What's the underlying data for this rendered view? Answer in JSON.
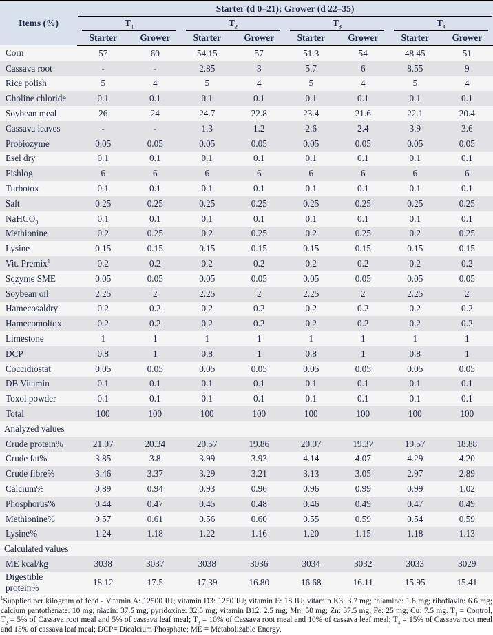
{
  "colors": {
    "header_bg": "#d9e2ec",
    "row_gray": "#e2e2e4",
    "row_white": "#f5f5f6",
    "text": "#1e2745"
  },
  "header": {
    "items_label": "Items (%)",
    "span_label": "Starter (d 0–21); Grower (d 22–35)",
    "groups": [
      {
        "base": "T",
        "sub": "1"
      },
      {
        "base": "T",
        "sub": "2"
      },
      {
        "base": "T",
        "sub": "3"
      },
      {
        "base": "T",
        "sub": "4"
      }
    ],
    "subcols": [
      "Starter",
      "Grower"
    ]
  },
  "table": {
    "rows": [
      {
        "label": "Corn",
        "shade": "w",
        "values": [
          "57",
          "60",
          "54.15",
          "57",
          "51.3",
          "54",
          "48.45",
          "51"
        ]
      },
      {
        "label": "Cassava root",
        "shade": "g",
        "values": [
          "-",
          "-",
          "2.85",
          "3",
          "5.7",
          "6",
          "8.55",
          "9"
        ]
      },
      {
        "label": "Rice polish",
        "shade": "w",
        "values": [
          "5",
          "4",
          "5",
          "4",
          "5",
          "4",
          "5",
          "4"
        ]
      },
      {
        "label": "Choline chloride",
        "shade": "g",
        "values": [
          "0.1",
          "0.1",
          "0.1",
          "0.1",
          "0.1",
          "0.1",
          "0.1",
          "0.1"
        ]
      },
      {
        "label": "Soybean meal",
        "shade": "w",
        "values": [
          "26",
          "24",
          "24.7",
          "22.8",
          "23.4",
          "21.6",
          "22.1",
          "20.4"
        ]
      },
      {
        "label": "Cassava leaves",
        "shade": "g",
        "values": [
          "-",
          "-",
          "1.3",
          "1.2",
          "2.6",
          "2.4",
          "3.9",
          "3.6"
        ]
      },
      {
        "label": "Probiozyme",
        "shade": "g",
        "values": [
          "0.05",
          "0.05",
          "0.05",
          "0.05",
          "0.05",
          "0.05",
          "0.05",
          "0.05"
        ]
      },
      {
        "label": "Esel dry",
        "shade": "w",
        "values": [
          "0.1",
          "0.1",
          "0.1",
          "0.1",
          "0.1",
          "0.1",
          "0.1",
          "0.1"
        ]
      },
      {
        "label": "Fishlog",
        "shade": "g",
        "values": [
          "6",
          "6",
          "6",
          "6",
          "6",
          "6",
          "6",
          "6"
        ]
      },
      {
        "label": "Turbotox",
        "shade": "w",
        "values": [
          "0.1",
          "0.1",
          "0.1",
          "0.1",
          "0.1",
          "0.1",
          "0.1",
          "0.1"
        ]
      },
      {
        "label": "Salt",
        "shade": "g",
        "values": [
          "0.25",
          "0.25",
          "0.25",
          "0.25",
          "0.25",
          "0.25",
          "0.25",
          "0.25"
        ]
      },
      {
        "label": "NaHCO_3",
        "shade": "w",
        "values": [
          "0.1",
          "0.1",
          "0.1",
          "0.1",
          "0.1",
          "0.1",
          "0.1",
          "0.1"
        ]
      },
      {
        "label": "Methionine",
        "shade": "g",
        "values": [
          "0.2",
          "0.25",
          "0.2",
          "0.25",
          "0.2",
          "0.25",
          "0.2",
          "0.25"
        ]
      },
      {
        "label": "Lysine",
        "shade": "w",
        "values": [
          "0.15",
          "0.15",
          "0.15",
          "0.15",
          "0.15",
          "0.15",
          "0.15",
          "0.15"
        ]
      },
      {
        "label": "Vit. Premix^1",
        "shade": "g",
        "values": [
          "0.2",
          "0.2",
          "0.2",
          "0.2",
          "0.2",
          "0.2",
          "0.2",
          "0.2"
        ]
      },
      {
        "label": "Sqzyme SME",
        "shade": "w",
        "values": [
          "0.05",
          "0.05",
          "0.05",
          "0.05",
          "0.05",
          "0.05",
          "0.05",
          "0.05"
        ]
      },
      {
        "label": "Soybean oil",
        "shade": "g",
        "values": [
          "2.25",
          "2",
          "2.25",
          "2",
          "2.25",
          "2",
          "2.25",
          "2"
        ]
      },
      {
        "label": "Hamecosaldry",
        "shade": "w",
        "values": [
          "0.2",
          "0.2",
          "0.2",
          "0.2",
          "0.2",
          "0.2",
          "0.2",
          "0.2"
        ]
      },
      {
        "label": "Hamecomoltox",
        "shade": "g",
        "values": [
          "0.2",
          "0.2",
          "0.2",
          "0.2",
          "0.2",
          "0.2",
          "0.2",
          "0.2"
        ]
      },
      {
        "label": "Limestone",
        "shade": "w",
        "values": [
          "1",
          "1",
          "1",
          "1",
          "1",
          "1",
          "1",
          "1"
        ]
      },
      {
        "label": "DCP",
        "shade": "g",
        "values": [
          "0.8",
          "1",
          "0.8",
          "1",
          "0.8",
          "1",
          "0.8",
          "1"
        ]
      },
      {
        "label": "Coccidiostat",
        "shade": "w",
        "values": [
          "0.05",
          "0.05",
          "0.05",
          "0.05",
          "0.05",
          "0.05",
          "0.05",
          "0.05"
        ]
      },
      {
        "label": "DB Vitamin",
        "shade": "g",
        "values": [
          "0.1",
          "0.1",
          "0.1",
          "0.1",
          "0.1",
          "0.1",
          "0.1",
          "0.1"
        ]
      },
      {
        "label": "Toxol powder",
        "shade": "w",
        "values": [
          "0.1",
          "0.1",
          "0.1",
          "0.1",
          "0.1",
          "0.1",
          "0.1",
          "0.1"
        ]
      },
      {
        "label": "Total",
        "shade": "g",
        "values": [
          "100",
          "100",
          "100",
          "100",
          "100",
          "100",
          "100",
          "100"
        ]
      },
      {
        "label": "Analyzed values",
        "shade": "w",
        "section": true
      },
      {
        "label": "Crude protein%",
        "shade": "g",
        "values": [
          "21.07",
          "20.34",
          "20.57",
          "19.86",
          "20.07",
          "19.37",
          "19.57",
          "18.88"
        ]
      },
      {
        "label": "Crude fat%",
        "shade": "w",
        "values": [
          "3.85",
          "3.8",
          "3.99",
          "3.93",
          "4.14",
          "4.07",
          "4.29",
          "4.20"
        ]
      },
      {
        "label": "Crude fibre%",
        "shade": "g",
        "values": [
          "3.46",
          "3.37",
          "3.29",
          "3.21",
          "3.13",
          "3.05",
          "2.97",
          "2.89"
        ]
      },
      {
        "label": "Calcium%",
        "shade": "w",
        "values": [
          "0.89",
          "0.94",
          "0.93",
          "0.96",
          "0.96",
          "0.99",
          "0.99",
          "1.02"
        ]
      },
      {
        "label": "Phosphorus%",
        "shade": "g",
        "values": [
          "0.44",
          "0.47",
          "0.45",
          "0.48",
          "0.46",
          "0.49",
          "0.47",
          "0.49"
        ]
      },
      {
        "label": "Methionine%",
        "shade": "w",
        "values": [
          "0.57",
          "0.61",
          "0.56",
          "0.60",
          "0.55",
          "0.59",
          "0.54",
          "0.59"
        ]
      },
      {
        "label": "Lysine%",
        "shade": "g",
        "values": [
          "1.24",
          "1.18",
          "1.22",
          "1.16",
          "1.20",
          "1.15",
          "1.18",
          "1.13"
        ]
      },
      {
        "label": "Calculated values",
        "shade": "w",
        "section": true
      },
      {
        "label": "ME kcal/kg",
        "shade": "g",
        "values": [
          "3038",
          "3037",
          "3038",
          "3036",
          "3034",
          "3032",
          "3033",
          "3029"
        ]
      },
      {
        "label": "Digestible protein%",
        "shade": "w",
        "values": [
          "18.12",
          "17.5",
          "17.39",
          "16.80",
          "16.68",
          "16.11",
          "15.95",
          "15.41"
        ]
      }
    ]
  },
  "footnote": "^1Supplied per kilogram of feed - Vitamin A: 12500 IU; vitamin D3: 1250 IU; vitamin E: 18 IU; vitamin K3: 3.7 mg; thiamine: 1.8 mg; riboflavin: 6.6 mg; calcium pantothenate: 10 mg; niacin: 37.5 mg; pyridoxine: 32.5 mg; vitamin B12: 2.5 mg; Mn: 50 mg; Zn: 37.5 mg; Fe: 25 mg; Cu: 7.5 mg. T_1 = Control, T_2 = 5% of Cassava root meal and 5% of cassava leaf meal; T_3 = 10% of Cassava root meal and 10% of cassava leaf meal; T_4 = 15% of Cassava root meal and 15% of cassava leaf meal; DCP= Dicalcium Phosphate; ME = Metabolizable Energy."
}
